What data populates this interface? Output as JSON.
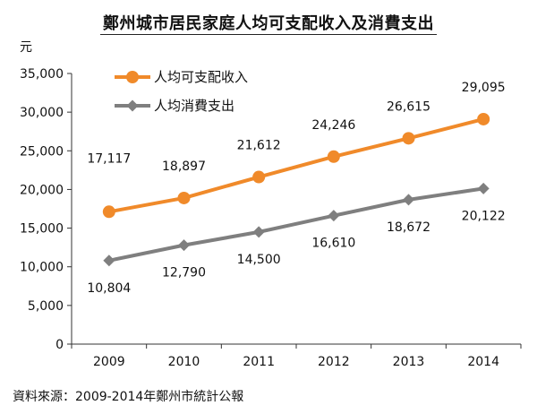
{
  "chart_data": {
    "type": "line",
    "title": "鄭州城市居民家庭人均可支配收入及消費支出",
    "ylabel": "元",
    "xlabel": "",
    "categories": [
      "2009",
      "2010",
      "2011",
      "2012",
      "2013",
      "2014"
    ],
    "ylim": [
      0,
      35000
    ],
    "yticks": [
      0,
      5000,
      10000,
      15000,
      20000,
      25000,
      30000,
      35000
    ],
    "ytick_labels": [
      "0",
      "5,000",
      "10,000",
      "15,000",
      "20,000",
      "25,000",
      "30,000",
      "35,000"
    ],
    "grid": false,
    "legend_position": "top-left",
    "series": [
      {
        "name": "人均可支配收入",
        "values": [
          17117,
          18897,
          21612,
          24246,
          26615,
          29095
        ],
        "labels": [
          "17,117",
          "18,897",
          "21,612",
          "24,246",
          "26,615",
          "29,095"
        ],
        "color": "#F08A2A",
        "marker": "circle"
      },
      {
        "name": "人均消費支出",
        "values": [
          10804,
          12790,
          14500,
          16610,
          18672,
          20122
        ],
        "labels": [
          "10,804",
          "12,790",
          "14,500",
          "16,610",
          "18,672",
          "20,122"
        ],
        "color": "#7F7F7F",
        "marker": "diamond"
      }
    ]
  },
  "source": "資料來源：2009-2014年鄭州市統計公報"
}
